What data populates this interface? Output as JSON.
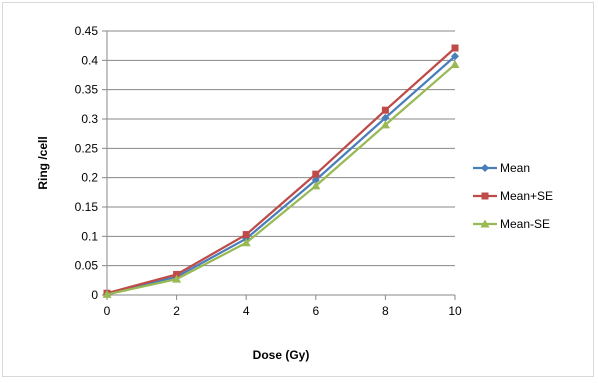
{
  "chart_data": {
    "type": "line",
    "title": "",
    "xlabel": "Dose (Gy)",
    "ylabel": "Ring /cell",
    "x": [
      0,
      2,
      4,
      6,
      8,
      10
    ],
    "xlim": [
      0,
      10
    ],
    "ylim": [
      0,
      0.45
    ],
    "x_ticks": [
      "0",
      "2",
      "4",
      "6",
      "8",
      "10"
    ],
    "y_ticks": [
      "0",
      "0.05",
      "0.1",
      "0.15",
      "0.2",
      "0.25",
      "0.3",
      "0.35",
      "0.4",
      "0.45"
    ],
    "grid": true,
    "legend_position": "right",
    "series": [
      {
        "name": "Mean",
        "color": "#4a7ebb",
        "marker": "diamond",
        "values": [
          0.002,
          0.031,
          0.096,
          0.196,
          0.302,
          0.407
        ]
      },
      {
        "name": "Mean+SE",
        "color": "#be4b48",
        "marker": "square",
        "values": [
          0.003,
          0.035,
          0.103,
          0.206,
          0.315,
          0.421
        ]
      },
      {
        "name": "Mean-SE",
        "color": "#98b954",
        "marker": "triangle",
        "values": [
          0.001,
          0.027,
          0.089,
          0.186,
          0.29,
          0.393
        ]
      }
    ]
  }
}
